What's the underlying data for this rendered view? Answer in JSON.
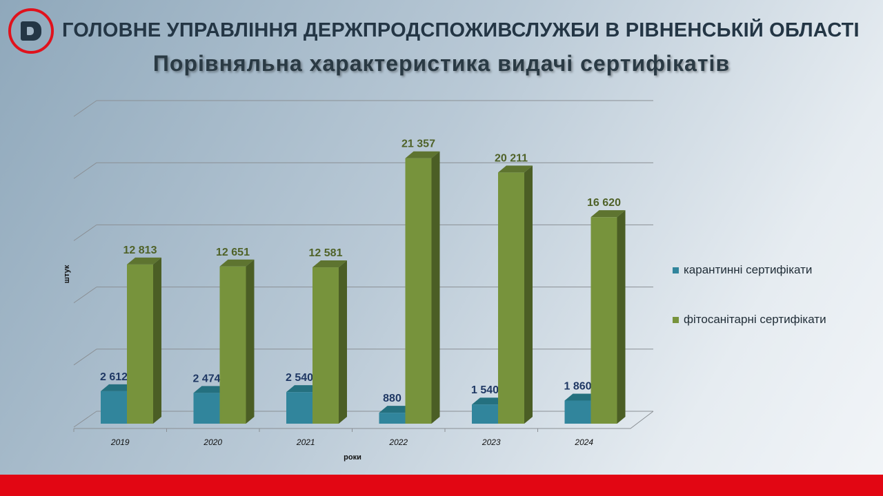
{
  "header": {
    "org": "ГОЛОВНЕ УПРАВЛІННЯ ДЕРЖПРОДСПОЖИВСЛУЖБИ В РІВНЕНСЬКІЙ ОБЛАСТІ",
    "logo_text": "D"
  },
  "colors": {
    "quarantine": "#31859c",
    "phyto": "#77933c",
    "red": "#e20613"
  },
  "chart_data": {
    "type": "bar",
    "title": "Порівняльна характеристика видачі сертифікатів",
    "xlabel": "роки",
    "ylabel": "штук",
    "ylim": [
      0,
      25000
    ],
    "grid": true,
    "legend": "right",
    "categories": [
      "2019",
      "2020",
      "2021",
      "2022",
      "2023",
      "2024"
    ],
    "series": [
      {
        "name": "карантинні сертифікати",
        "values": [
          2612,
          2474,
          2540,
          880,
          1540,
          1860
        ],
        "labels": [
          "2 612",
          "2 474",
          "2 540",
          "880",
          "1 540",
          "1 860"
        ]
      },
      {
        "name": "фітосанітарні сертифікати",
        "values": [
          12813,
          12651,
          12581,
          21357,
          20211,
          16620
        ],
        "labels": [
          "12 813",
          "12 651",
          "12 581",
          "21 357",
          "20 211",
          "16 620"
        ]
      }
    ]
  }
}
